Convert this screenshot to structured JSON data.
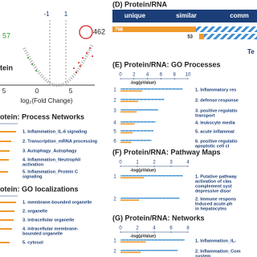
{
  "volcano": {
    "threshold_labels": [
      "-1",
      "1"
    ],
    "down_count": "57",
    "up_count": "462",
    "panel_label": "tein",
    "x_ticks": [
      "5",
      "0",
      "5"
    ],
    "x_label": "log₂(Fold Change)"
  },
  "process_networks": {
    "title": "otein: Process Networks",
    "items": [
      [
        "1. Inflammation_IL-6 signaling"
      ],
      [
        "2. Transcription_mRNA processing"
      ],
      [
        "3. Autophagy_Autophagy"
      ],
      [
        "4. Inflammation_Neutrophil",
        "activation"
      ],
      [
        "5. Inflammation_Protein C",
        "signaling"
      ]
    ]
  },
  "go_localizations": {
    "title": "otein: GO localizations",
    "items": [
      [
        "1. membrane-bounded organelle"
      ],
      [
        "2. organelle"
      ],
      [
        "3. intracellular organelle"
      ],
      [
        "4. intracellular membrane-",
        "bounded organelle"
      ],
      [
        "5. cytosol"
      ]
    ]
  },
  "panel_d": {
    "title": "(D) Protein/RNA",
    "columns": [
      "unique",
      "similar",
      "comm"
    ],
    "counts": [
      798,
      53
    ],
    "side_label": "Te"
  },
  "panel_e": {
    "title": "(E) Protein/RNA: GO Processes",
    "xlabel": "-log(pValue)",
    "xlim": [
      0,
      10
    ],
    "xticks": [
      0,
      2,
      4,
      6,
      8,
      10
    ],
    "rows": [
      "1",
      "2",
      "3",
      "4",
      "5",
      "6"
    ],
    "items": [
      [
        "1. Inflammatory res"
      ],
      [
        "2. defense response"
      ],
      [
        "3. positive regulatio",
        "transport"
      ],
      [
        "4. leukocyte media"
      ],
      [
        "5. acute inflammat"
      ],
      [
        "6. positive regulatio",
        "apoptotic cell cl"
      ]
    ],
    "bars": [
      {
        "color": "#3d8fd1",
        "dashed": true,
        "values": [
          9.2,
          6.5,
          5.6,
          5.2,
          4.9,
          4.6
        ]
      },
      {
        "color": "#f09a2c",
        "dashed": false,
        "values": [
          3.2,
          2.6,
          2.4,
          2.1,
          1.8,
          1.6
        ]
      }
    ]
  },
  "panel_f": {
    "title": "(F) Protein/RNA: Pathway Maps",
    "xlabel": "-log(pValue)",
    "xlim": [
      0,
      4
    ],
    "xticks": [
      0,
      1,
      2,
      3,
      4
    ],
    "rows": [
      "1",
      "2"
    ],
    "items": [
      [
        "1. Putative pathway",
        "activation of clas",
        "complement syst",
        "depressive disor"
      ],
      [
        "2. Immune respons",
        "Induced acute-ph",
        "in hepatocytes"
      ]
    ],
    "bars": [
      {
        "color": "#3d8fd1",
        "dashed": true,
        "values": [
          3.7,
          3.5
        ]
      },
      {
        "color": "#f09a2c",
        "dashed": false,
        "values": [
          1.4,
          1.1
        ]
      }
    ]
  },
  "panel_g": {
    "title": "(G) Protein/RNA: Networks",
    "xlabel": "-log(pValue)",
    "xlim": [
      0,
      8
    ],
    "xticks": [
      0,
      2,
      4,
      6,
      8
    ],
    "rows": [
      "1",
      "2"
    ],
    "items": [
      [
        "1. Inflammation_IL-"
      ],
      [
        "2. Inflammation_Com",
        "system"
      ]
    ],
    "bars": [
      {
        "color": "#3d8fd1",
        "dashed": true,
        "values": [
          7.6,
          6.8
        ]
      },
      {
        "color": "#f09a2c",
        "dashed": false,
        "values": [
          3.0,
          2.4
        ]
      }
    ]
  }
}
